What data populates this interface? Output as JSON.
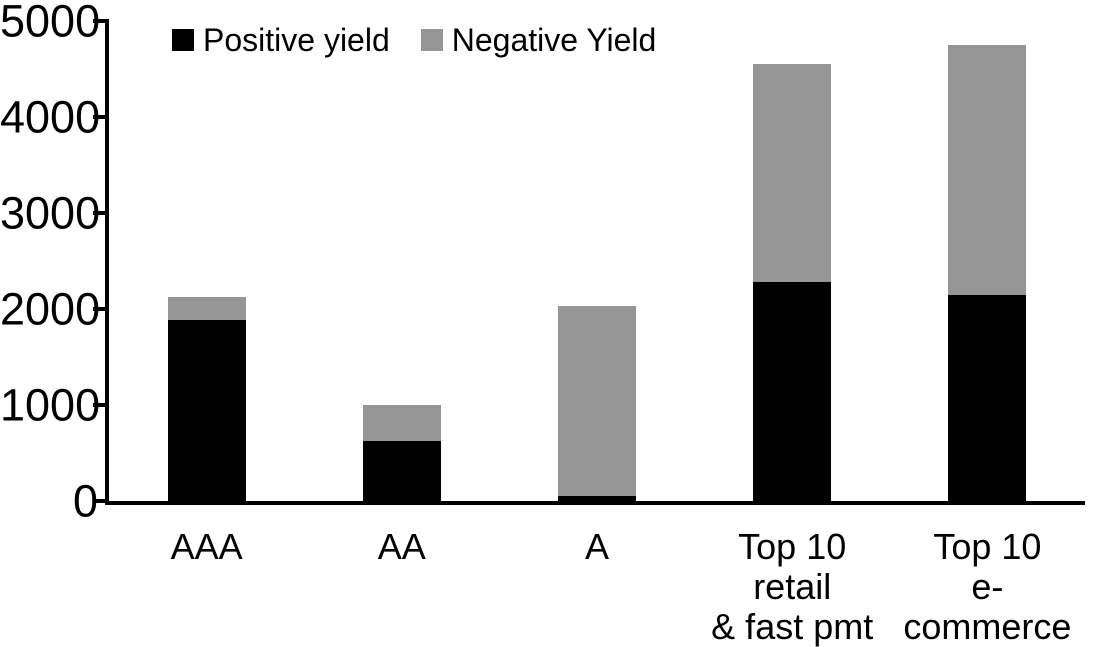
{
  "chart_data": {
    "type": "bar",
    "stacked": true,
    "title": "",
    "xlabel": "",
    "ylabel": "",
    "categories": [
      "AAA",
      "AA",
      "A",
      "Top 10 retail & fast pmt",
      "Top 10 e-commerce"
    ],
    "category_label_lines": [
      [
        "AAA"
      ],
      [
        "AA"
      ],
      [
        "A"
      ],
      [
        "Top 10 retail",
        "& fast pmt"
      ],
      [
        "Top 10",
        "e-commerce"
      ]
    ],
    "series": [
      {
        "name": "Positive yield",
        "color": "#000000",
        "values": [
          1890,
          625,
          50,
          2280,
          2150
        ]
      },
      {
        "name": "Negative Yield",
        "color": "#969696",
        "values": [
          230,
          375,
          1980,
          2270,
          2600
        ]
      }
    ],
    "totals": [
      2120,
      1000,
      2030,
      4550,
      4750
    ],
    "ylim": [
      0,
      5000
    ],
    "yticks": [
      0,
      1000,
      2000,
      3000,
      4000,
      5000
    ],
    "grid": false,
    "legend_position": "top"
  },
  "colors": {
    "background": "#ffffff",
    "axis": "#000000",
    "positive": "#000000",
    "negative": "#969696"
  }
}
